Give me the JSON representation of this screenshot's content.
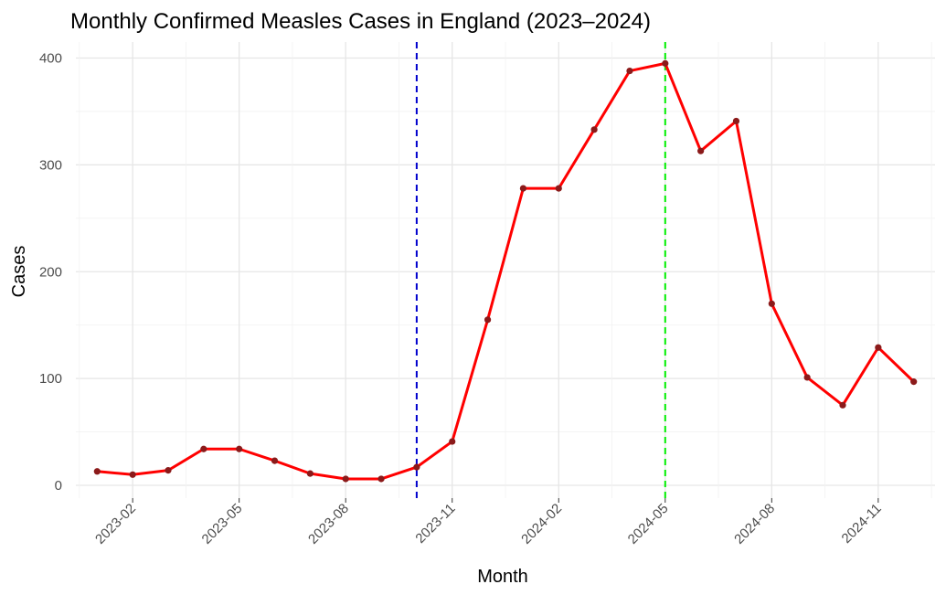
{
  "chart_data": {
    "type": "line",
    "title": "Monthly Confirmed Measles Cases in England (2023–2024)",
    "xlabel": "Month",
    "ylabel": "Cases",
    "x": [
      "2023-01",
      "2023-02",
      "2023-03",
      "2023-04",
      "2023-05",
      "2023-06",
      "2023-07",
      "2023-08",
      "2023-09",
      "2023-10",
      "2023-11",
      "2023-12",
      "2024-01",
      "2024-02",
      "2024-03",
      "2024-04",
      "2024-05",
      "2024-06",
      "2024-07",
      "2024-08",
      "2024-09",
      "2024-10",
      "2024-11",
      "2024-12"
    ],
    "series": [
      {
        "values": [
          13,
          10,
          14,
          34,
          34,
          23,
          11,
          6,
          6,
          17,
          41,
          155,
          278,
          278,
          333,
          388,
          395,
          313,
          341,
          170,
          101,
          75,
          129,
          97
        ],
        "color": "#ff0000",
        "marker_color": "#8b1a1a"
      }
    ],
    "ylim": [
      -12,
      415
    ],
    "y_ticks": [
      0,
      100,
      200,
      300,
      400
    ],
    "x_tick_labels": [
      "2023-02",
      "2023-05",
      "2023-08",
      "2023-11",
      "2024-02",
      "2024-05",
      "2024-08",
      "2024-11"
    ],
    "reference_lines": [
      {
        "x": "2023-10",
        "color": "#0000cd",
        "style": "dashed"
      },
      {
        "x": "2024-05",
        "color": "#00ee00",
        "style": "dashed"
      }
    ],
    "grid": true,
    "legend": "none"
  }
}
